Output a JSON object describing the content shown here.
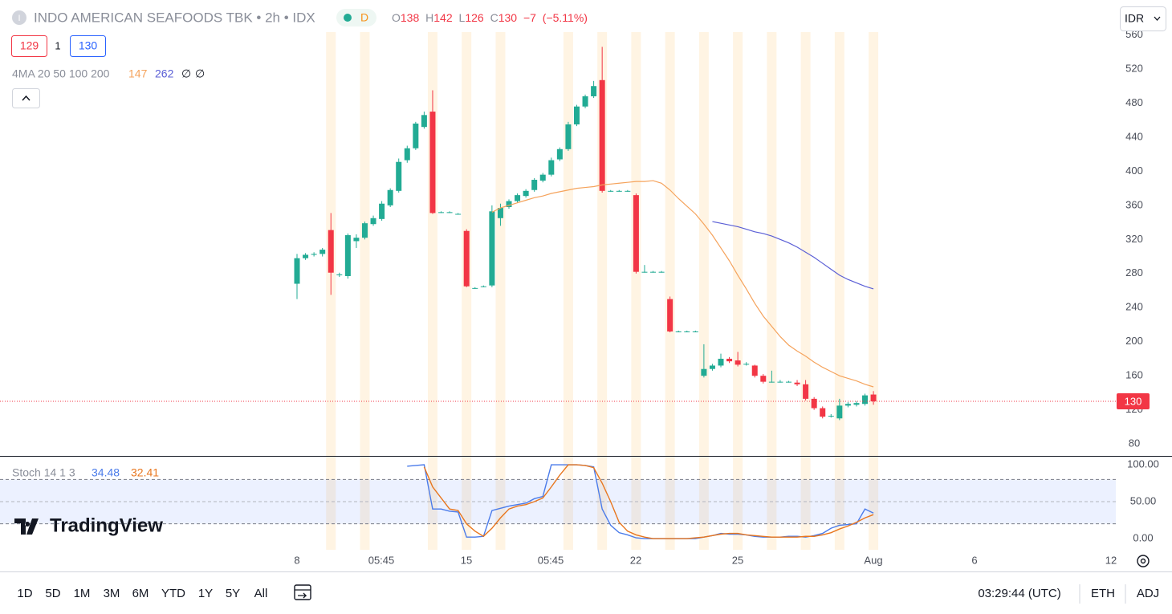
{
  "header": {
    "icon": "I",
    "symbol": "INDO AMERICAN SEAFOODS TBK • 2h • IDX",
    "session": "D",
    "ohlc": [
      {
        "key": "O",
        "value": 138
      },
      {
        "key": "H",
        "value": 142
      },
      {
        "key": "L",
        "value": 126
      },
      {
        "key": "C",
        "value": 130
      }
    ],
    "change": {
      "value": -7,
      "label": "−7"
    },
    "change_pct": {
      "value": -5.11,
      "label": "(−5.11%)"
    },
    "trade_buttons": [
      129,
      1,
      130
    ],
    "currency": "IDR"
  },
  "chart_data": [
    {
      "type": "candlestick",
      "indicator_label": "4MA 20 50 100 200",
      "legend_extra": [
        "∅",
        "∅"
      ],
      "ylim": [
        66,
        601
      ],
      "yticks": [
        80,
        120,
        160,
        200,
        240,
        280,
        320,
        360,
        400,
        440,
        480,
        520,
        560
      ],
      "grid": false,
      "xtick_labels": [
        "8",
        "05:45",
        "15",
        "05:45",
        "22",
        "25",
        "Aug",
        "6",
        "12"
      ],
      "up_color": "#22ab94",
      "down_color": "#f23645",
      "open": [
        268,
        298,
        302,
        303,
        331,
        278,
        277,
        318,
        322,
        338,
        344,
        360,
        377,
        413,
        427,
        452,
        470,
        352,
        352,
        350,
        330,
        263,
        265,
        266,
        345,
        358,
        365,
        371,
        378,
        389,
        396,
        414,
        426,
        455,
        476,
        488,
        507,
        377,
        377,
        377,
        372,
        282,
        282,
        282,
        250,
        212,
        212,
        212,
        160,
        168,
        172,
        180,
        178,
        174,
        172,
        160,
        153,
        153,
        153,
        152,
        150,
        133,
        122,
        113,
        110,
        125,
        126,
        127,
        138
      ],
      "high": [
        303,
        304,
        305,
        310,
        351,
        281,
        327,
        326,
        341,
        348,
        365,
        380,
        415,
        430,
        458,
        470,
        495,
        353,
        353,
        351,
        332,
        264,
        266,
        360,
        362,
        367,
        374,
        379,
        392,
        398,
        416,
        428,
        458,
        478,
        490,
        506,
        546,
        378,
        378,
        378,
        374,
        290,
        283,
        283,
        253,
        213,
        213,
        213,
        197,
        174,
        186,
        182,
        188,
        176,
        173,
        162,
        166,
        155,
        154,
        155,
        155,
        135,
        124,
        115,
        133,
        129,
        130,
        139,
        142
      ],
      "low": [
        250,
        296,
        300,
        300,
        255,
        276,
        274,
        310,
        320,
        336,
        342,
        358,
        375,
        410,
        425,
        450,
        350,
        351,
        351,
        349,
        264,
        262,
        264,
        264,
        336,
        356,
        363,
        369,
        376,
        387,
        394,
        412,
        424,
        453,
        474,
        486,
        375,
        376,
        376,
        376,
        280,
        281,
        281,
        281,
        211,
        211,
        211,
        211,
        158,
        166,
        170,
        175,
        171,
        172,
        158,
        151,
        152,
        152,
        152,
        148,
        131,
        120,
        110,
        111,
        108,
        123,
        124,
        125,
        126
      ],
      "close": [
        298,
        302,
        303,
        308,
        281,
        279,
        325,
        322,
        339,
        345,
        362,
        378,
        411,
        427,
        456,
        466,
        351,
        352,
        352,
        350,
        265,
        263,
        265,
        353,
        357,
        365,
        372,
        377,
        390,
        396,
        413,
        426,
        455,
        476,
        488,
        500,
        377,
        377,
        377,
        377,
        282,
        282,
        282,
        282,
        212,
        212,
        212,
        212,
        168,
        172,
        180,
        177,
        173,
        174,
        160,
        153,
        153,
        153,
        153,
        150,
        133,
        122,
        112,
        113,
        125,
        127,
        128,
        137,
        130
      ],
      "series": [
        {
          "color": "#f5a35c",
          "values": [
            null,
            null,
            null,
            null,
            null,
            null,
            null,
            null,
            null,
            null,
            null,
            null,
            null,
            null,
            null,
            null,
            null,
            null,
            null,
            null,
            null,
            null,
            null,
            352,
            357,
            360,
            363,
            366,
            369,
            371,
            374,
            376,
            378,
            380,
            381,
            382,
            384,
            385,
            386,
            387,
            388,
            388,
            389,
            386,
            378,
            368,
            359,
            350,
            338,
            325,
            310,
            295,
            278,
            262,
            245,
            230,
            218,
            206,
            196,
            189,
            183,
            176,
            170,
            165,
            160,
            157,
            154,
            150,
            147
          ]
        },
        {
          "color": "#5b5fd6",
          "values": [
            null,
            null,
            null,
            null,
            null,
            null,
            null,
            null,
            null,
            null,
            null,
            null,
            null,
            null,
            null,
            null,
            null,
            null,
            null,
            null,
            null,
            null,
            null,
            null,
            null,
            null,
            null,
            null,
            null,
            null,
            null,
            null,
            null,
            null,
            null,
            null,
            null,
            null,
            null,
            null,
            null,
            null,
            null,
            null,
            null,
            null,
            null,
            null,
            null,
            341,
            339,
            337,
            335,
            332,
            329,
            327,
            324,
            320,
            316,
            311,
            305,
            299,
            292,
            285,
            278,
            273,
            269,
            265,
            262
          ]
        }
      ]
    },
    {
      "type": "line",
      "title": "Stoch 14 1 3",
      "ylim": [
        -15.2,
        110.9
      ],
      "yticks": [
        {
          "value": 100,
          "label": "100.00"
        },
        {
          "value": 50,
          "label": "50.00"
        },
        {
          "value": 0,
          "label": "0.00"
        }
      ],
      "band": [
        20,
        80
      ],
      "midline": 50,
      "series": [
        {
          "color": "#4a7bea",
          "values": [
            null,
            null,
            null,
            null,
            null,
            null,
            null,
            null,
            null,
            null,
            null,
            null,
            null,
            98,
            99,
            100,
            40,
            40,
            37,
            36,
            2,
            2,
            3,
            38,
            41,
            44,
            46,
            48,
            54,
            57,
            100,
            100,
            100,
            100,
            99,
            97,
            40,
            18,
            8,
            5,
            1,
            0,
            0,
            0,
            0,
            0,
            0,
            0,
            2,
            4,
            7,
            6,
            6,
            5,
            3,
            2,
            2,
            2,
            3,
            3,
            2,
            4,
            7,
            14,
            18,
            19,
            20,
            40,
            34.48
          ]
        },
        {
          "color": "#e8761e",
          "values": [
            null,
            null,
            null,
            null,
            null,
            null,
            null,
            null,
            null,
            null,
            null,
            null,
            null,
            null,
            null,
            97,
            70,
            55,
            40,
            38,
            20,
            10,
            3,
            14,
            28,
            40,
            44,
            46,
            50,
            55,
            70,
            86,
            100,
            100,
            99,
            96,
            75,
            50,
            22,
            10,
            5,
            2,
            0,
            0,
            0,
            0,
            0,
            1,
            2,
            4,
            6,
            7,
            7,
            5,
            4,
            3,
            2,
            2,
            2,
            2,
            3,
            3,
            5,
            8,
            13,
            17,
            22,
            28,
            32.41
          ]
        }
      ]
    }
  ],
  "logo": "TradingView",
  "toolbar": {
    "periods": [
      "1D",
      "5D",
      "1M",
      "3M",
      "6M",
      "YTD",
      "1Y",
      "5Y",
      "All"
    ],
    "clock": "03:29:44 (UTC)",
    "session": "ETH",
    "adjust": "ADJ"
  }
}
